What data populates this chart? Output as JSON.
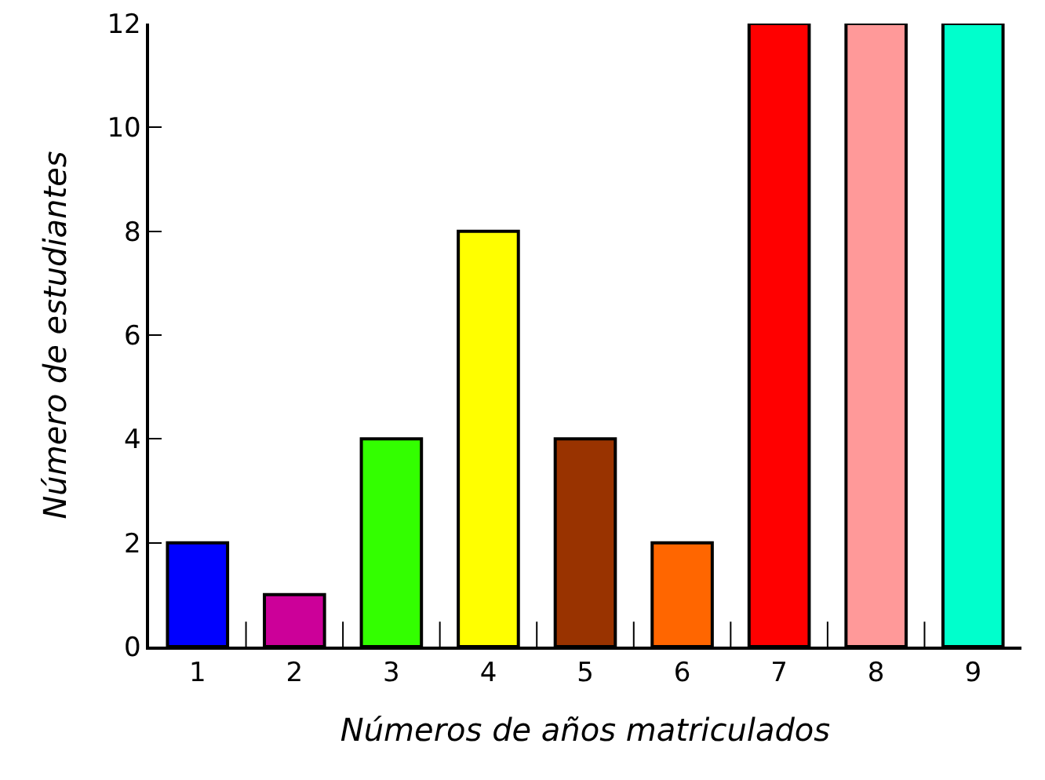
{
  "chart_data": {
    "type": "bar",
    "xlabel": "Números de años matriculados",
    "ylabel": "Número de estudiantes",
    "categories": [
      "1",
      "2",
      "3",
      "4",
      "5",
      "6",
      "7",
      "8",
      "9"
    ],
    "values": [
      2,
      1,
      4,
      8,
      4,
      2,
      12,
      12,
      12
    ],
    "colors": [
      "#0000ff",
      "#cc0099",
      "#33ff00",
      "#ffff00",
      "#993300",
      "#ff6600",
      "#ff0000",
      "#ff9999",
      "#00ffcc"
    ],
    "ylim": [
      0,
      12
    ],
    "yticks": [
      0,
      2,
      4,
      6,
      8,
      10,
      12
    ]
  }
}
